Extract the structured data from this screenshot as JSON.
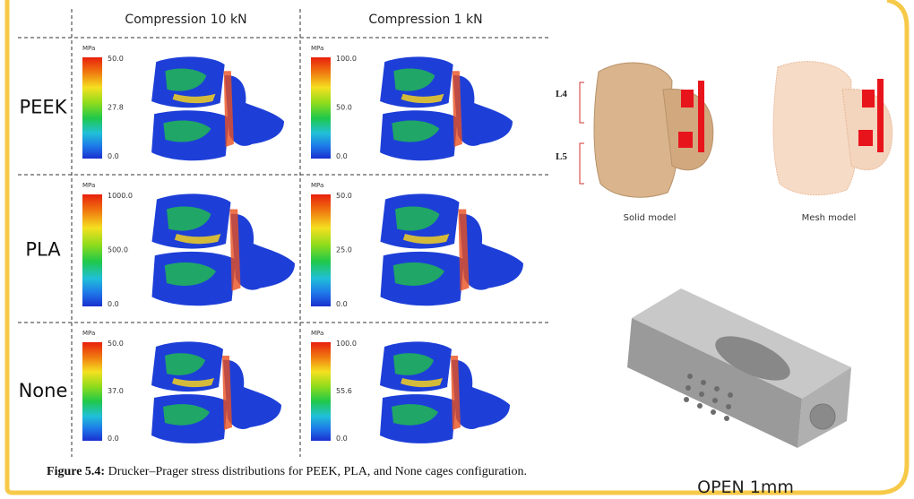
{
  "header": {
    "columns": [
      "Compression 10 kN",
      "Compression 1 kN"
    ]
  },
  "rows": [
    {
      "label": "PEEK",
      "cells": [
        {
          "unit": "MPa",
          "scale": [
            "50.0",
            "27.8",
            "0.0"
          ]
        },
        {
          "unit": "MPa",
          "scale": [
            "100.0",
            "50.0",
            "0.0"
          ]
        }
      ]
    },
    {
      "label": "PLA",
      "cells": [
        {
          "unit": "MPa",
          "scale": [
            "1000.0",
            "500.0",
            "0.0"
          ]
        },
        {
          "unit": "MPa",
          "scale": [
            "50.0",
            "25.0",
            "0.0"
          ]
        }
      ]
    },
    {
      "label": "None",
      "cells": [
        {
          "unit": "MPa",
          "scale": [
            "50.0",
            "37.0",
            "0.0"
          ]
        },
        {
          "unit": "MPa",
          "scale": [
            "100.0",
            "55.6",
            "0.0"
          ]
        }
      ]
    }
  ],
  "caption": {
    "label": "Figure 5.4:",
    "text": "Drucker–Prager stress distributions for PEEK, PLA, and None cages configuration."
  },
  "models": {
    "levels": [
      "L4",
      "L5"
    ],
    "solid": "Solid model",
    "mesh": "Mesh model"
  },
  "cage": {
    "label": "OPEN 1mm"
  }
}
